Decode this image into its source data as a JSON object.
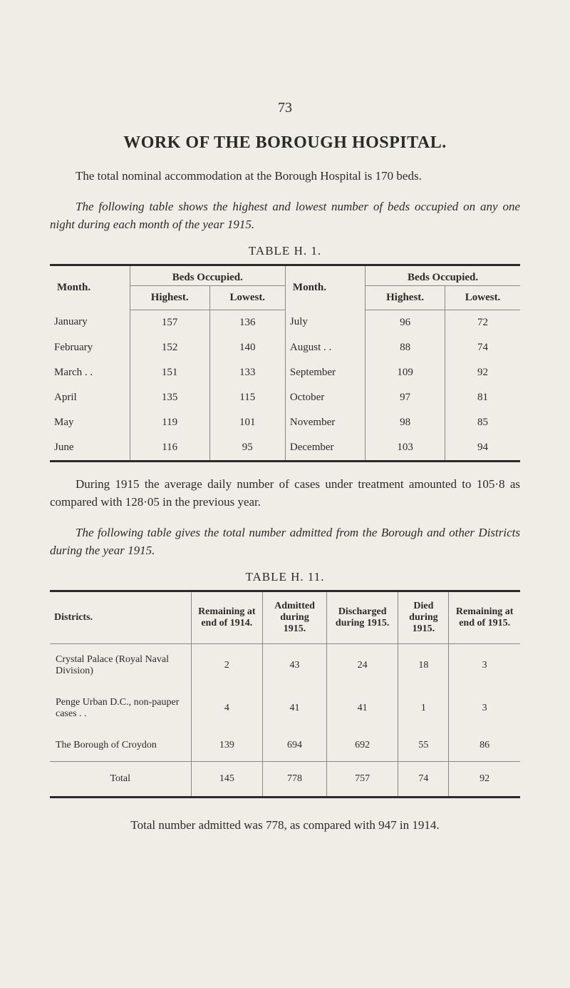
{
  "page_number": "73",
  "main_title": "WORK OF THE BOROUGH HOSPITAL.",
  "para1_a": "The total nominal accommodation at the Borough Hospital is ",
  "para1_b": "170 beds.",
  "para2": "The following table shows the highest and lowest number of beds occupied on any one night during each month of the year 1915.",
  "table1": {
    "caption": "TABLE H. 1.",
    "h_month": "Month.",
    "h_beds": "Beds Occupied.",
    "h_high": "Highest.",
    "h_low": "Lowest.",
    "rows": [
      {
        "m1": "January",
        "h1": "157",
        "l1": "136",
        "m2": "July",
        "h2": "96",
        "l2": "72"
      },
      {
        "m1": "February",
        "h1": "152",
        "l1": "140",
        "m2": "August . .",
        "h2": "88",
        "l2": "74"
      },
      {
        "m1": "March . .",
        "h1": "151",
        "l1": "133",
        "m2": "September",
        "h2": "109",
        "l2": "92"
      },
      {
        "m1": "April",
        "h1": "135",
        "l1": "115",
        "m2": "October",
        "h2": "97",
        "l2": "81"
      },
      {
        "m1": "May",
        "h1": "119",
        "l1": "101",
        "m2": "November",
        "h2": "98",
        "l2": "85"
      },
      {
        "m1": "June",
        "h1": "116",
        "l1": "95",
        "m2": "December",
        "h2": "103",
        "l2": "94"
      }
    ]
  },
  "para3": "During 1915 the average daily number of cases under treatment amounted to 105·8 as compared with 128·05 in the previous year.",
  "para4": "The following table gives the total number admitted from the Borough and other Districts during the year 1915.",
  "table2": {
    "caption": "TABLE H. 11.",
    "h_districts": "Districts.",
    "h_remaining_start": "Remaining at end of 1914.",
    "h_admitted": "Admitted during 1915.",
    "h_discharged": "Discharged during 1915.",
    "h_died": "Died during 1915.",
    "h_remaining_end": "Remaining at end of 1915.",
    "rows": [
      {
        "d": "Crystal Palace (Royal Naval Division)",
        "c1": "2",
        "c2": "43",
        "c3": "24",
        "c4": "18",
        "c5": "3"
      },
      {
        "d": "Penge Urban D.C., non-pauper cases . .",
        "c1": "4",
        "c2": "41",
        "c3": "41",
        "c4": "1",
        "c5": "3"
      },
      {
        "d": "The Borough of Croydon",
        "c1": "139",
        "c2": "694",
        "c3": "692",
        "c4": "55",
        "c5": "86"
      }
    ],
    "total_label": "Total",
    "total": {
      "c1": "145",
      "c2": "778",
      "c3": "757",
      "c4": "74",
      "c5": "92"
    }
  },
  "footnote": "Total number admitted was 778, as compared with 947 in 1914."
}
